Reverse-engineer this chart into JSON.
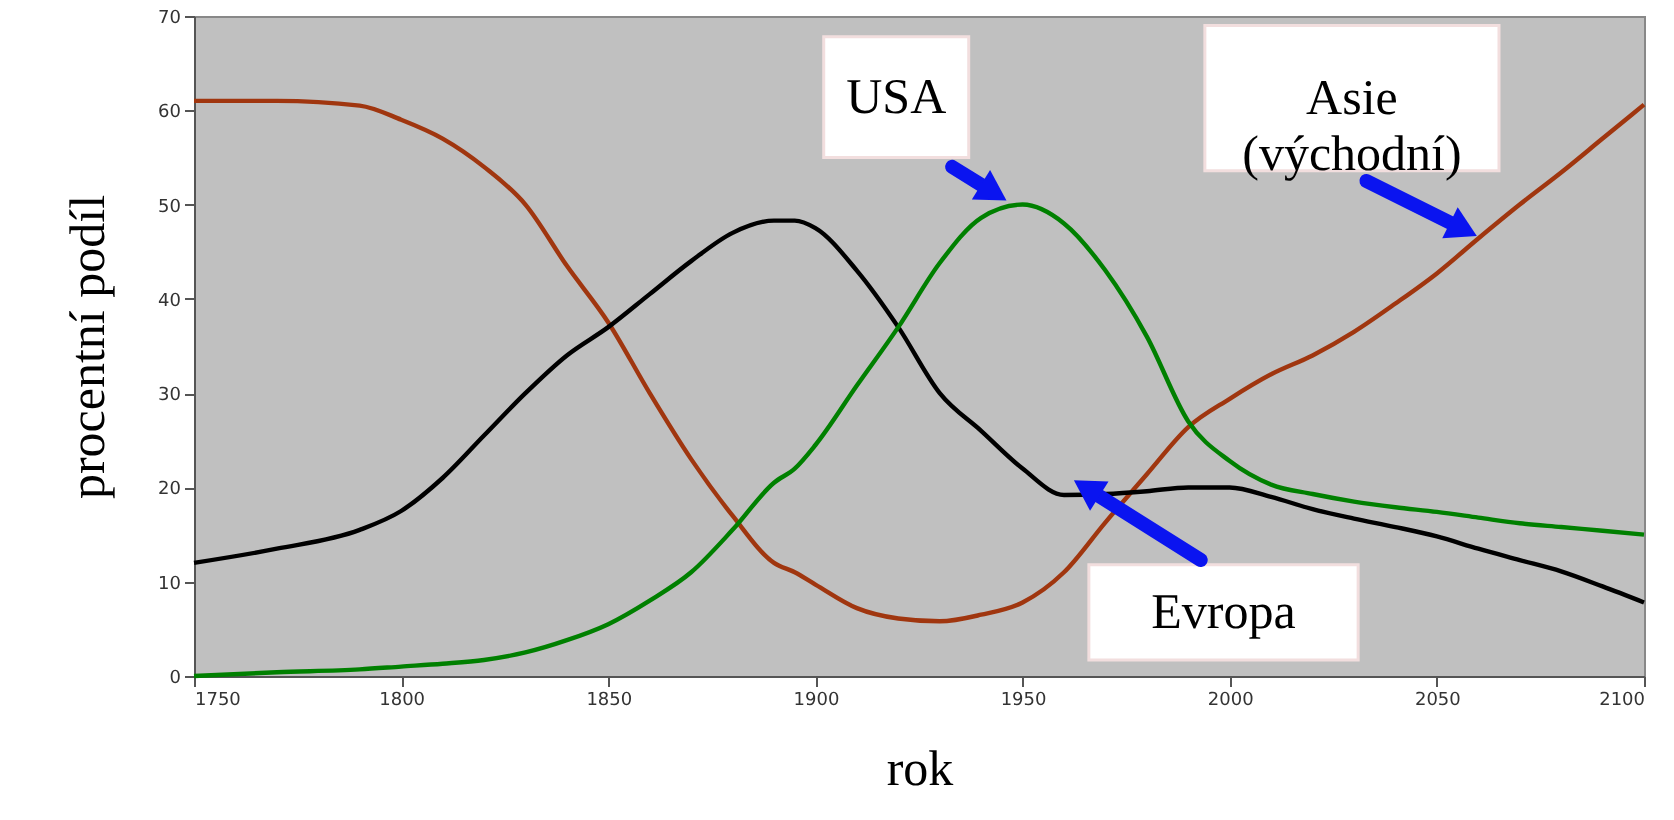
{
  "chart_data": {
    "type": "line",
    "xlabel": "rok",
    "ylabel": "procentní podíl",
    "x": [
      1750,
      1770,
      1790,
      1800,
      1810,
      1820,
      1830,
      1840,
      1850,
      1860,
      1870,
      1880,
      1890,
      1895,
      1900,
      1910,
      1920,
      1930,
      1940,
      1950,
      1960,
      1970,
      1980,
      1990,
      2000,
      2010,
      2020,
      2030,
      2040,
      2050,
      2060,
      2070,
      2080,
      2090,
      2100
    ],
    "series": [
      {
        "name": "Asie (východní)",
        "color": "#a0360f",
        "values": [
          61,
          61,
          60.5,
          59,
          57,
          54,
          50,
          43.5,
          37.5,
          30,
          23,
          17,
          12,
          11,
          9.7,
          7.2,
          6.1,
          5.8,
          6.5,
          7.8,
          11,
          16.3,
          21.4,
          26.4,
          29.4,
          32,
          34,
          36.5,
          39.5,
          42.7,
          46.4,
          50,
          53.4,
          57,
          60.6
        ]
      },
      {
        "name": "Evropa",
        "color": "#000000",
        "values": [
          12,
          13.5,
          15.5,
          17.5,
          21,
          25.5,
          30,
          34,
          37,
          40.5,
          44,
          47,
          48.3,
          48.3,
          47.5,
          43,
          37,
          30,
          26,
          22,
          19.2,
          19.3,
          19.6,
          20,
          20,
          19,
          17.7,
          16.7,
          15.8,
          14.8,
          13.5,
          12.3,
          11.1,
          9.5,
          7.8
        ]
      },
      {
        "name": "USA",
        "color": "#008000",
        "values": [
          0,
          0.4,
          0.7,
          1,
          1.3,
          1.7,
          2.5,
          3.8,
          5.5,
          8,
          11,
          15.5,
          20.5,
          22,
          24.5,
          30.8,
          37,
          43.8,
          48.6,
          50,
          48,
          43,
          36,
          27,
          22.8,
          20.3,
          19.3,
          18.5,
          17.9,
          17.4,
          16.8,
          16.2,
          15.8,
          15.4,
          15
        ]
      }
    ],
    "xlim": [
      1750,
      2100
    ],
    "xticks": [
      1750,
      1800,
      1850,
      1900,
      1950,
      2000,
      2050,
      2100
    ],
    "ylim": [
      0,
      70
    ],
    "yticks": [
      0,
      10,
      20,
      30,
      40,
      50,
      60,
      70
    ],
    "grid": false,
    "marker": "none",
    "line_style": "solid"
  }
}
